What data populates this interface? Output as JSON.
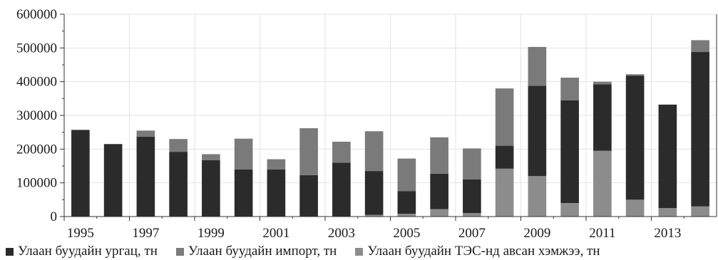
{
  "chart_data": {
    "type": "bar",
    "stacked": true,
    "x": [
      "1995",
      "1996",
      "1997",
      "1998",
      "1999",
      "2000",
      "2001",
      "2002",
      "2003",
      "2004",
      "2005",
      "2006",
      "2007",
      "2008",
      "2009",
      "2010",
      "2011",
      "2012",
      "2013",
      "2014"
    ],
    "x_tick_labels": [
      "1995",
      "1997",
      "1999",
      "2001",
      "2003",
      "2005",
      "2007",
      "2009",
      "2011",
      "2013"
    ],
    "series": [
      {
        "name": "Улаан буудайн ТЭС-нд авсан хэмжээ, тн",
        "color": "#8c8c8c",
        "values": [
          0,
          0,
          0,
          0,
          0,
          0,
          0,
          0,
          0,
          5000,
          8000,
          22000,
          10000,
          142000,
          120000,
          40000,
          195000,
          50000,
          25000,
          30000
        ]
      },
      {
        "name": "Улаан буудайн ургац, тн",
        "color": "#2b2b2b",
        "values": [
          257000,
          215000,
          237000,
          192000,
          167000,
          140000,
          140000,
          123000,
          160000,
          130000,
          67000,
          105000,
          100000,
          68000,
          268000,
          305000,
          197000,
          368000,
          307000,
          458000
        ]
      },
      {
        "name": "Улаан буудайн импорт, тн",
        "color": "#7a7a7a",
        "values": [
          0,
          0,
          18000,
          38000,
          18000,
          91000,
          30000,
          139000,
          62000,
          118000,
          97000,
          108000,
          92000,
          170000,
          115000,
          67000,
          8000,
          4000,
          0,
          35000
        ]
      }
    ],
    "legend_order": [
      1,
      2,
      0
    ],
    "legend_position": "bottom",
    "y_ticks": [
      "0",
      "100000",
      "200000",
      "300000",
      "400000",
      "500000",
      "600000"
    ],
    "ylim": [
      0,
      600000
    ],
    "grid": true,
    "title": "",
    "xlabel": "",
    "ylabel": ""
  }
}
